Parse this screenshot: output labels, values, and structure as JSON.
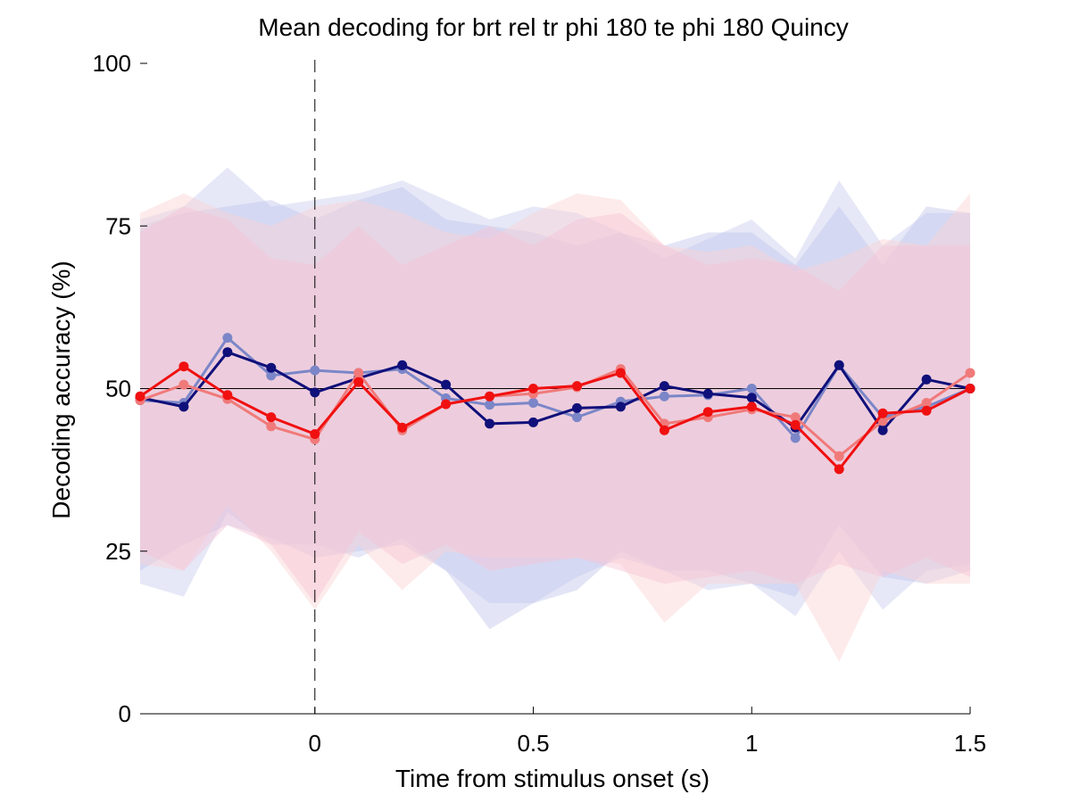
{
  "chart_data": {
    "type": "line",
    "title": "Mean decoding for brt rel tr phi 180 te phi 180  Quincy",
    "xlabel": "Time from stimulus onset (s)",
    "ylabel": "Decoding accuracy (%)",
    "xlim": [
      -0.4,
      1.5
    ],
    "ylim": [
      0,
      100
    ],
    "x_ticks": [
      {
        "value": 0,
        "label": "0"
      },
      {
        "value": 0.5,
        "label": "0.5"
      },
      {
        "value": 1,
        "label": "1"
      },
      {
        "value": 1.5,
        "label": "1.5"
      }
    ],
    "y_ticks": [
      {
        "value": 0,
        "label": "0"
      },
      {
        "value": 25,
        "label": "25"
      },
      {
        "value": 50,
        "label": "50"
      },
      {
        "value": 75,
        "label": "75"
      },
      {
        "value": 100,
        "label": "100"
      }
    ],
    "grid": false,
    "chance_level": 50,
    "stimulus_onset": 0,
    "x": [
      -0.4,
      -0.3,
      -0.2,
      -0.1,
      0,
      0.1,
      0.2,
      0.3,
      0.4,
      0.5,
      0.6,
      0.7,
      0.8,
      0.9,
      1.0,
      1.1,
      1.2,
      1.3,
      1.4,
      1.5
    ],
    "series": [
      {
        "color": "#7b86c8",
        "band_color": "#c8cbee",
        "values": [
          48.2,
          47.8,
          57.8,
          52.0,
          52.8,
          52.4,
          53.0,
          48.5,
          47.5,
          47.8,
          45.6,
          48.0,
          48.8,
          49.0,
          50.0,
          42.4,
          53.6,
          45.6,
          47.2,
          50.0
        ],
        "upper": [
          76,
          78,
          84,
          78,
          79,
          80,
          82,
          79,
          76,
          78,
          77,
          74,
          70,
          73,
          76,
          70,
          82,
          72,
          77,
          77
        ],
        "lower": [
          20,
          18,
          31,
          26,
          26,
          24,
          27,
          22,
          17,
          17,
          21,
          24,
          22,
          19,
          20,
          15,
          25,
          16,
          22,
          23
        ]
      },
      {
        "color": "#10107a",
        "band_color": "#c2c5ec",
        "values": [
          48.6,
          47.2,
          55.6,
          53.2,
          49.4,
          51.6,
          53.6,
          50.6,
          44.6,
          44.8,
          47.0,
          47.2,
          50.4,
          49.2,
          48.6,
          44.0,
          53.6,
          43.6,
          51.4,
          50.0
        ],
        "upper": [
          75,
          77,
          78,
          79,
          76,
          79,
          81,
          76,
          75,
          74,
          72,
          74,
          72,
          74,
          74,
          69,
          78,
          69,
          78,
          77
        ],
        "lower": [
          22,
          26,
          29,
          27,
          24,
          25,
          26,
          22,
          13,
          17,
          19,
          25,
          22,
          22,
          20,
          18,
          29,
          21,
          20,
          22
        ]
      },
      {
        "color": "#f07a7a",
        "band_color": "#fbd2d2",
        "values": [
          48.2,
          50.6,
          48.4,
          44.2,
          42.2,
          52.4,
          43.6,
          47.6,
          48.8,
          49.2,
          50.2,
          53.0,
          44.6,
          45.6,
          46.8,
          45.6,
          39.6,
          45.0,
          47.8,
          52.4
        ],
        "upper": [
          77,
          80,
          77,
          75,
          78,
          79,
          77,
          74,
          73,
          77,
          80,
          79,
          72,
          71,
          72,
          68,
          70,
          73,
          72,
          80
        ],
        "lower": [
          23,
          22,
          32,
          25,
          16,
          26,
          19,
          25,
          24,
          24,
          24,
          23,
          14,
          20,
          20,
          20,
          8,
          22,
          20,
          20
        ]
      },
      {
        "color": "#f01010",
        "band_color": "#f7c4d4",
        "values": [
          48.8,
          53.4,
          49.0,
          45.6,
          43.0,
          51.0,
          44.0,
          47.6,
          48.8,
          50.0,
          50.4,
          52.4,
          43.6,
          46.4,
          47.2,
          44.4,
          37.6,
          46.2,
          46.6,
          50.0
        ],
        "upper": [
          74,
          78,
          76,
          70,
          69,
          75,
          69,
          72,
          75,
          72,
          76,
          77,
          72,
          69,
          70,
          69,
          65,
          72,
          72,
          72
        ],
        "lower": [
          25,
          22,
          29,
          26,
          17,
          28,
          23,
          26,
          22,
          23,
          24,
          22,
          20,
          21,
          22,
          20,
          23,
          21,
          24,
          21
        ]
      }
    ]
  }
}
